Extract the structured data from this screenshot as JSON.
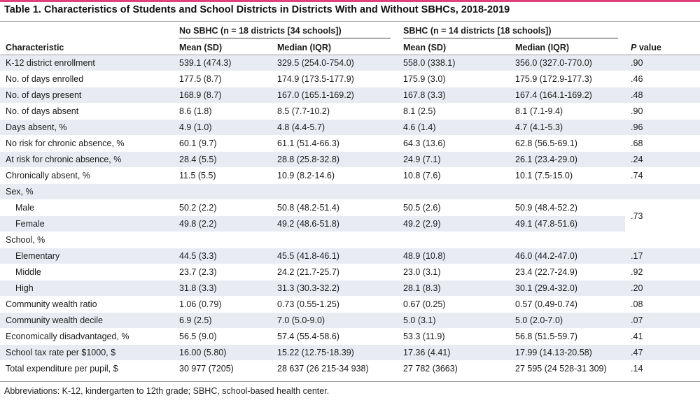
{
  "title": "Table 1. Characteristics of Students and School Districts in Districts With and Without SBHCs, 2018-2019",
  "header": {
    "group1": "No SBHC (n = 18 districts [34 schools])",
    "group2": "SBHC (n = 14 districts [18 schools])",
    "characteristic": "Characteristic",
    "mean_sd": "Mean (SD)",
    "median_iqr": "Median (IQR)",
    "p_italic": "P",
    "p_rest": " value"
  },
  "rows": [
    {
      "label": "K-12 district enrollment",
      "a": "539.1 (474.3)",
      "b": "329.5 (254.0-754.0)",
      "c": "558.0 (338.1)",
      "d": "356.0 (327.0-770.0)",
      "p": ".90"
    },
    {
      "label": "No. of days enrolled",
      "a": "177.5 (8.7)",
      "b": "174.9 (173.5-177.9)",
      "c": "175.9 (3.0)",
      "d": "175.9 (172.9-177.3)",
      "p": ".46"
    },
    {
      "label": "No. of days present",
      "a": "168.9 (8.7)",
      "b": "167.0 (165.1-169.2)",
      "c": "167.8 (3.3)",
      "d": "167.4 (164.1-169.2)",
      "p": ".48"
    },
    {
      "label": "No. of days absent",
      "a": "8.6 (1.8)",
      "b": "8.5 (7.7-10.2)",
      "c": "8.1 (2.5)",
      "d": "8.1 (7.1-9.4)",
      "p": ".90"
    },
    {
      "label": "Days absent, %",
      "a": "4.9 (1.0)",
      "b": "4.8 (4.4-5.7)",
      "c": "4.6 (1.4)",
      "d": "4.7 (4.1-5.3)",
      "p": ".96"
    },
    {
      "label": "No risk for chronic absence, %",
      "a": "60.1 (9.7)",
      "b": "61.1 (51.4-66.3)",
      "c": "64.3 (13.6)",
      "d": "62.8 (56.5-69.1)",
      "p": ".68"
    },
    {
      "label": "At risk for chronic absence, %",
      "a": "28.4 (5.5)",
      "b": "28.8 (25.8-32.8)",
      "c": "24.9 (7.1)",
      "d": "26.1 (23.4-29.0)",
      "p": ".24"
    },
    {
      "label": "Chronically absent, %",
      "a": "11.5 (5.5)",
      "b": "10.9 (8.2-14.6)",
      "c": "10.8 (7.6)",
      "d": "10.1 (7.5-15.0)",
      "p": ".74"
    },
    {
      "label": "Sex, %",
      "a": "",
      "b": "",
      "c": "",
      "d": "",
      "p": ""
    },
    {
      "label": "Male",
      "a": "50.2 (2.2)",
      "b": "50.8 (48.2-51.4)",
      "c": "50.5 (2.6)",
      "d": "50.9 (48.4-52.2)",
      "p": ".73"
    },
    {
      "label": "Female",
      "a": "49.8 (2.2)",
      "b": "49.2 (48.6-51.8)",
      "c": "49.2 (2.9)",
      "d": "49.1 (47.8-51.6)",
      "p": ""
    },
    {
      "label": "School, %",
      "a": "",
      "b": "",
      "c": "",
      "d": "",
      "p": ""
    },
    {
      "label": "Elementary",
      "a": "44.5 (3.3)",
      "b": "45.5 (41.8-46.1)",
      "c": "48.9 (10.8)",
      "d": "46.0 (44.2-47.0)",
      "p": ".17"
    },
    {
      "label": "Middle",
      "a": "23.7 (2.3)",
      "b": "24.2 (21.7-25.7)",
      "c": "23.0 (3.1)",
      "d": "23.4 (22.7-24.9)",
      "p": ".92"
    },
    {
      "label": "High",
      "a": "31.8 (3.3)",
      "b": "31.3 (30.3-32.2)",
      "c": "28.1 (8.3)",
      "d": "30.1 (29.4-32.0)",
      "p": ".20"
    },
    {
      "label": "Community wealth ratio",
      "a": "1.06 (0.79)",
      "b": "0.73 (0.55-1.25)",
      "c": "0.67 (0.25)",
      "d": "0.57 (0.49-0.74)",
      "p": ".08"
    },
    {
      "label": "Community wealth decile",
      "a": "6.9 (2.5)",
      "b": "7.0 (5.0-9.0)",
      "c": "5.0 (3.1)",
      "d": "5.0 (2.0-7.0)",
      "p": ".07"
    },
    {
      "label": "Economically disadvantaged, %",
      "a": "56.5 (9.0)",
      "b": "57.4 (55.4-58.6)",
      "c": "53.3 (11.9)",
      "d": "56.8 (51.5-59.7)",
      "p": ".41"
    },
    {
      "label": "School tax rate per $1000, $",
      "a": "16.00 (5.80)",
      "b": "15.22 (12.75-18.39)",
      "c": "17.36 (4.41)",
      "d": "17.99 (14.13-20.58)",
      "p": ".47"
    },
    {
      "label": "Total expenditure per pupil, $",
      "a": "30 977 (7205)",
      "b": "28 637 (26 215-34 938)",
      "c": "27 782 (3663)",
      "d": "27 595 (24 528-31 309)",
      "p": ".14"
    }
  ],
  "footnote": "Abbreviations: K-12, kindergarten to 12th grade; SBHC, school-based health center.",
  "colors": {
    "accent": "#e0417a",
    "shade": "#e8ecf2"
  }
}
